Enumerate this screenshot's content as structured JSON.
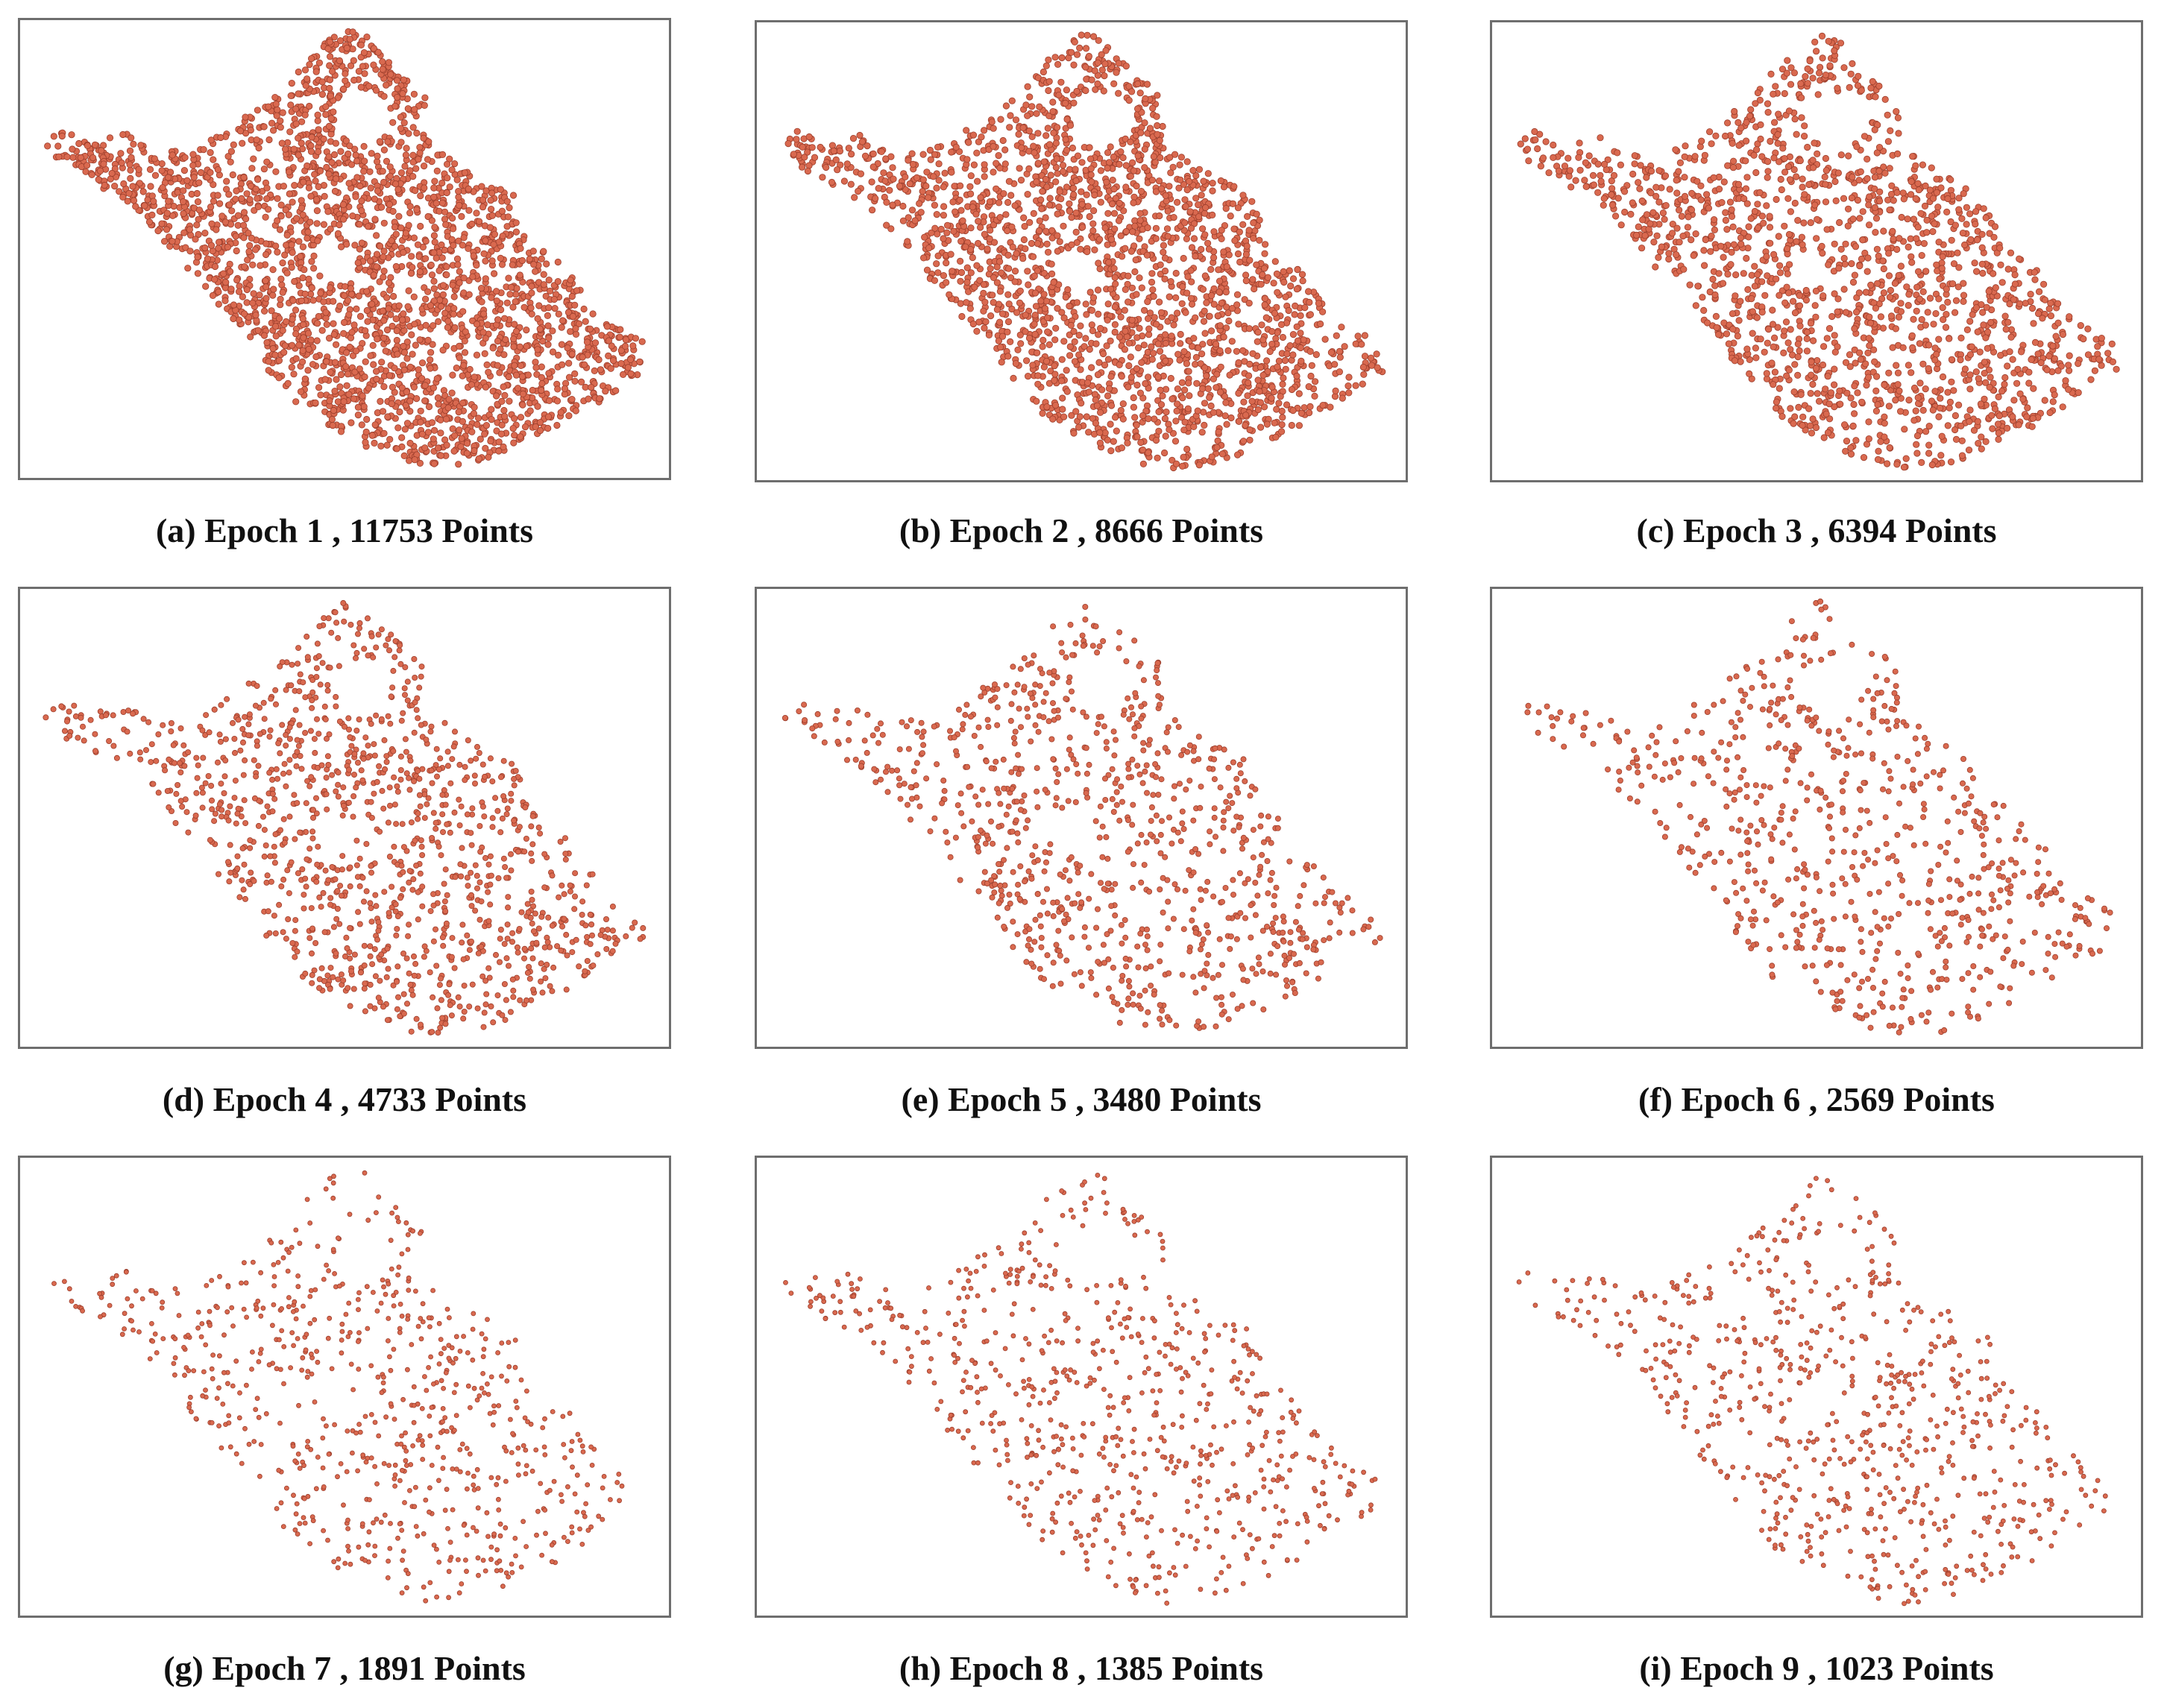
{
  "figure": {
    "point_color": "#d9694f",
    "point_outline": "#9c3e2c",
    "frame_color": "#6e6e6e",
    "panels": [
      {
        "letter": "(a)",
        "epoch": 1,
        "points": 11753,
        "caption": "(a) Epoch 1 , 11753 Points"
      },
      {
        "letter": "(b)",
        "epoch": 2,
        "points": 8666,
        "caption": "(b) Epoch 2 , 8666 Points"
      },
      {
        "letter": "(c)",
        "epoch": 3,
        "points": 6394,
        "caption": "(c) Epoch 3 , 6394 Points"
      },
      {
        "letter": "(d)",
        "epoch": 4,
        "points": 4733,
        "caption": "(d) Epoch 4 , 4733 Points"
      },
      {
        "letter": "(e)",
        "epoch": 5,
        "points": 3480,
        "caption": "(e) Epoch 5 , 3480 Points"
      },
      {
        "letter": "(f)",
        "epoch": 6,
        "points": 2569,
        "caption": "(f) Epoch 6 , 2569 Points"
      },
      {
        "letter": "(g)",
        "epoch": 7,
        "points": 1891,
        "caption": "(g) Epoch 7 , 1891 Points"
      },
      {
        "letter": "(h)",
        "epoch": 8,
        "points": 1385,
        "caption": "(h) Epoch 8 , 1385 Points"
      },
      {
        "letter": "(i)",
        "epoch": 9,
        "points": 1023,
        "caption": "(i) Epoch 9 , 1023 Points"
      }
    ]
  }
}
